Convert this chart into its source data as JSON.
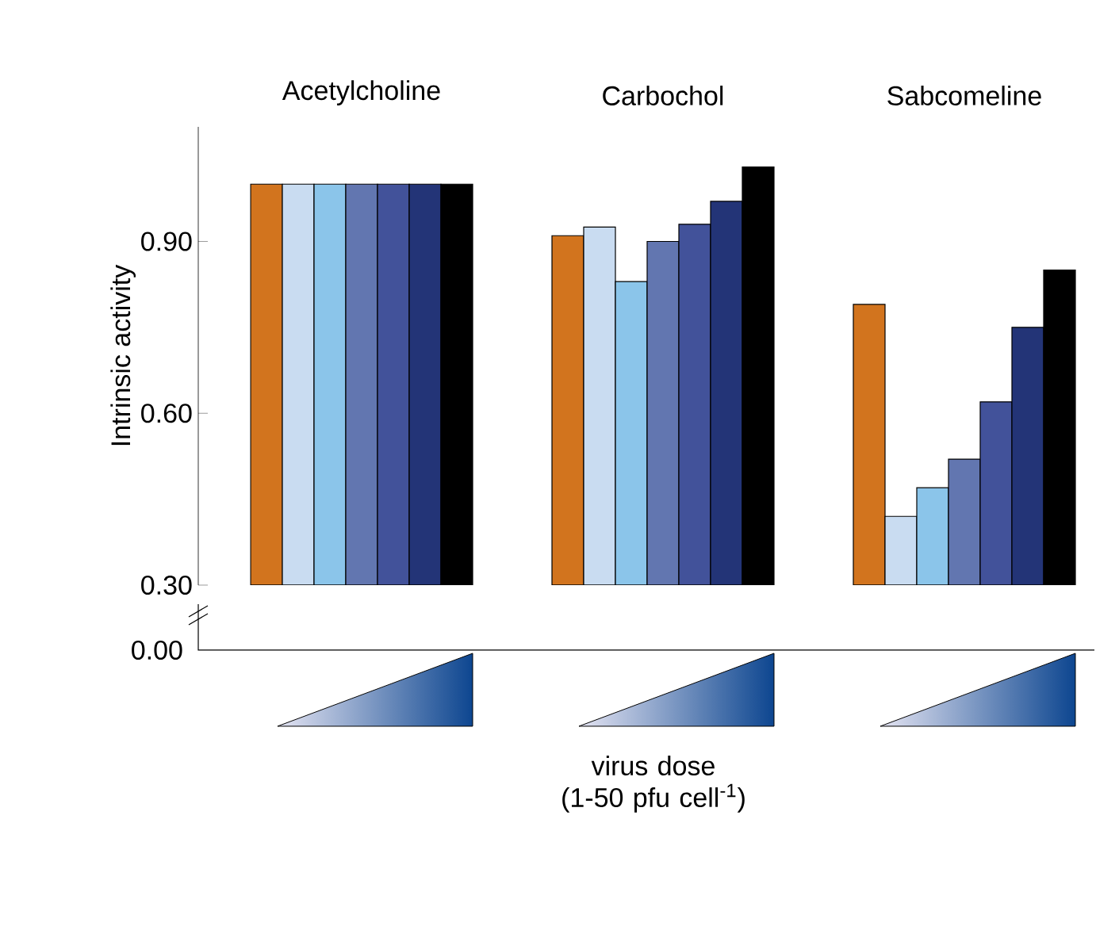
{
  "chart_data": {
    "type": "bar",
    "ylabel": "Intrinsic activity",
    "categories": [
      "Acetylcholine",
      "Carbochol",
      "Sabcomeline"
    ],
    "series": [
      {
        "color": "#d2741e",
        "values": [
          1.0,
          0.91,
          0.79
        ]
      },
      {
        "color": "#c9dcf1",
        "values": [
          1.0,
          0.925,
          0.42
        ]
      },
      {
        "color": "#8bc5ea",
        "values": [
          1.0,
          0.83,
          0.47
        ]
      },
      {
        "color": "#6276b0",
        "values": [
          1.0,
          0.9,
          0.52
        ]
      },
      {
        "color": "#42529a",
        "values": [
          1.0,
          0.93,
          0.62
        ]
      },
      {
        "color": "#233477",
        "values": [
          1.0,
          0.97,
          0.75
        ]
      },
      {
        "color": "#000000",
        "values": [
          1.0,
          1.03,
          0.85
        ]
      }
    ],
    "ylim": [
      0.3,
      1.1
    ],
    "yticks": [
      {
        "value": 0.3,
        "label": "0.30"
      },
      {
        "value": 0.6,
        "label": "0.60"
      },
      {
        "value": 0.9,
        "label": "0.90"
      }
    ],
    "annotations": [
      "0.00",
      "virus dose (1-50 pfu cell$^{-1}$)"
    ]
  }
}
